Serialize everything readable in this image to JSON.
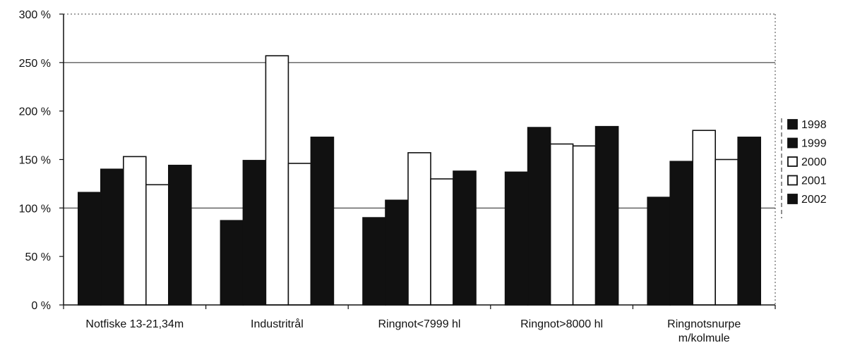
{
  "chart_data": {
    "type": "bar",
    "categories": [
      [
        "Notfiske 13-21,34m"
      ],
      [
        "Industritrål"
      ],
      [
        "Ringnot<7999 hl"
      ],
      [
        "Ringnot>8000 hl"
      ],
      [
        "Ringnotsnurpe",
        "m/kolmule"
      ]
    ],
    "series": [
      {
        "name": "1998",
        "color": "#111111",
        "values": [
          116,
          87,
          90,
          137,
          111
        ]
      },
      {
        "name": "1999",
        "color": "#111111",
        "values": [
          140,
          149,
          108,
          183,
          148
        ]
      },
      {
        "name": "2000",
        "color": "#ffffff",
        "values": [
          153,
          257,
          157,
          166,
          180
        ]
      },
      {
        "name": "2001",
        "color": "#ffffff",
        "values": [
          124,
          146,
          130,
          164,
          150
        ]
      },
      {
        "name": "2002",
        "color": "#111111",
        "values": [
          144,
          173,
          138,
          184,
          173
        ]
      }
    ],
    "ylim": [
      0,
      300
    ],
    "yticks": [
      0,
      50,
      100,
      150,
      200,
      250,
      300
    ],
    "ytick_labels": [
      "0 %",
      "50 %",
      "100 %",
      "150 %",
      "200 %",
      "250 %",
      "300 %"
    ],
    "gridlines": [
      250,
      100
    ],
    "legend_position": "right",
    "title": "",
    "xlabel": "",
    "ylabel": ""
  }
}
